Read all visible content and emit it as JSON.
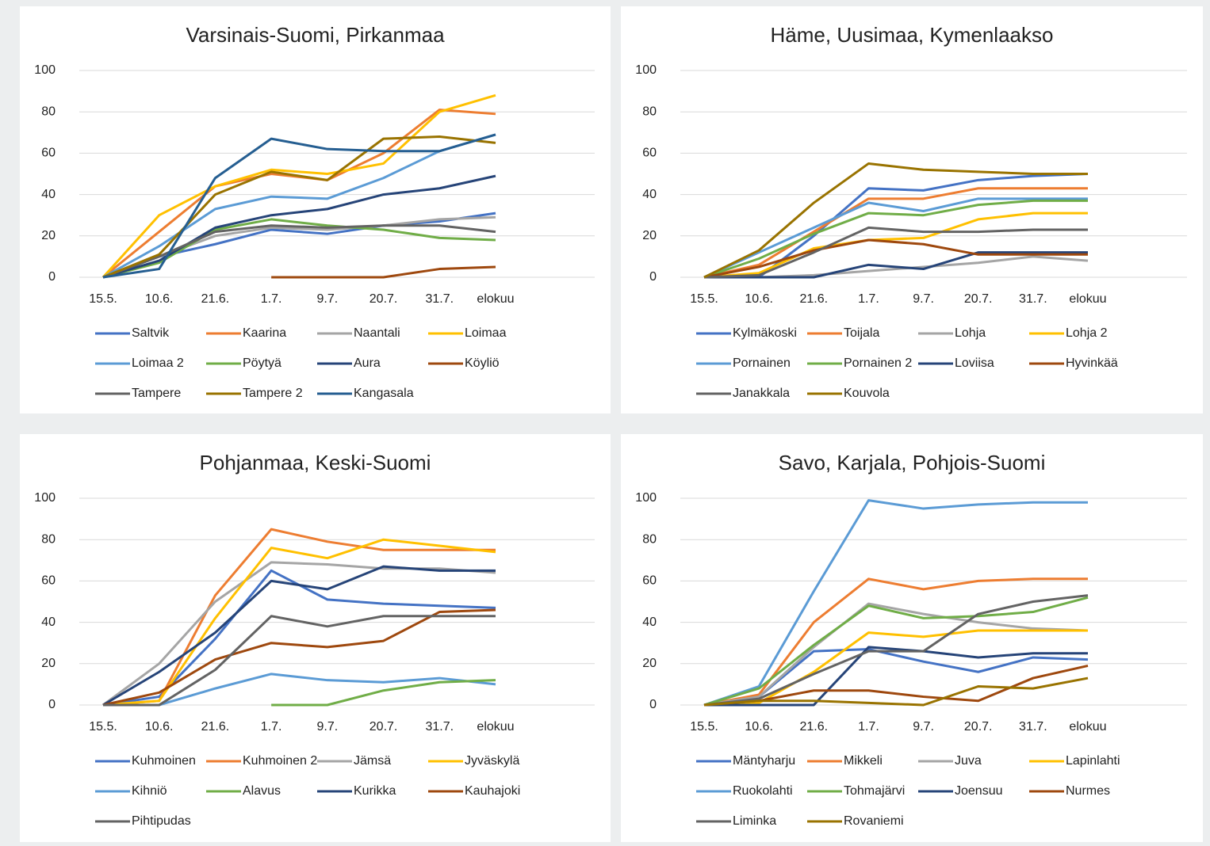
{
  "chart_data": [
    {
      "type": "line",
      "title": "Varsinais-Suomi, Pirkanmaa",
      "categories": [
        "15.5.",
        "10.6.",
        "21.6.",
        "1.7.",
        "9.7.",
        "20.7.",
        "31.7.",
        "elokuu"
      ],
      "ylim": [
        0,
        100
      ],
      "yticks": [
        0,
        20,
        40,
        60,
        80,
        100
      ],
      "grid": true,
      "legend": "bottom",
      "series": [
        {
          "name": "Saltvik",
          "color": "#4472c4",
          "values": [
            0,
            10,
            16,
            23,
            21,
            25,
            27,
            31
          ]
        },
        {
          "name": "Kaarina",
          "color": "#ed7d31",
          "values": [
            0,
            22,
            44,
            50,
            47,
            60,
            81,
            79
          ]
        },
        {
          "name": "Naantali",
          "color": "#a5a5a5",
          "values": [
            0,
            10,
            20,
            24,
            23,
            25,
            28,
            29
          ]
        },
        {
          "name": "Loimaa",
          "color": "#ffc000",
          "values": [
            0,
            30,
            44,
            52,
            50,
            55,
            80,
            88
          ]
        },
        {
          "name": "Loimaa 2",
          "color": "#5b9bd5",
          "values": [
            0,
            15,
            33,
            39,
            38,
            48,
            61,
            69
          ]
        },
        {
          "name": "Pöytyä",
          "color": "#70ad47",
          "values": [
            0,
            7,
            23,
            28,
            25,
            23,
            19,
            18
          ]
        },
        {
          "name": "Aura",
          "color": "#264478",
          "values": [
            0,
            8,
            24,
            30,
            33,
            40,
            43,
            49
          ]
        },
        {
          "name": "Köyliö",
          "color": "#9e480e",
          "values": [
            null,
            null,
            null,
            0,
            0,
            0,
            4,
            5
          ]
        },
        {
          "name": "Tampere",
          "color": "#636363",
          "values": [
            0,
            10,
            22,
            25,
            24,
            25,
            25,
            22
          ]
        },
        {
          "name": "Tampere 2",
          "color": "#997300",
          "values": [
            0,
            11,
            40,
            51,
            47,
            67,
            68,
            65
          ]
        },
        {
          "name": "Kangasala",
          "color": "#255e91",
          "values": [
            0,
            4,
            48,
            67,
            62,
            61,
            61,
            69
          ]
        }
      ]
    },
    {
      "type": "line",
      "title": "Häme, Uusimaa, Kymenlaakso",
      "categories": [
        "15.5.",
        "10.6.",
        "21.6.",
        "1.7.",
        "9.7.",
        "20.7.",
        "31.7.",
        "elokuu"
      ],
      "ylim": [
        0,
        100
      ],
      "yticks": [
        0,
        20,
        40,
        60,
        80,
        100
      ],
      "grid": true,
      "legend": "bottom",
      "series": [
        {
          "name": "Kylmäkoski",
          "color": "#4472c4",
          "values": [
            0,
            0,
            20,
            43,
            42,
            47,
            49,
            50
          ]
        },
        {
          "name": "Toijala",
          "color": "#ed7d31",
          "values": [
            0,
            6,
            22,
            38,
            38,
            43,
            43,
            43
          ]
        },
        {
          "name": "Lohja",
          "color": "#a5a5a5",
          "values": [
            0,
            0,
            1,
            3,
            5,
            7,
            10,
            8
          ]
        },
        {
          "name": "Lohja 2",
          "color": "#ffc000",
          "values": [
            0,
            2,
            14,
            18,
            19,
            28,
            31,
            31
          ]
        },
        {
          "name": "Pornainen",
          "color": "#5b9bd5",
          "values": [
            0,
            12,
            24,
            36,
            32,
            38,
            38,
            38
          ]
        },
        {
          "name": "Pornainen 2",
          "color": "#70ad47",
          "values": [
            0,
            9,
            21,
            31,
            30,
            35,
            37,
            37
          ]
        },
        {
          "name": "Loviisa",
          "color": "#264478",
          "values": [
            0,
            0,
            0,
            6,
            4,
            12,
            12,
            12
          ]
        },
        {
          "name": "Hyvinkää",
          "color": "#9e480e",
          "values": [
            0,
            5,
            13,
            18,
            16,
            11,
            11,
            11
          ]
        },
        {
          "name": "Janakkala",
          "color": "#636363",
          "values": [
            0,
            1,
            12,
            24,
            22,
            22,
            23,
            23
          ]
        },
        {
          "name": "Kouvola",
          "color": "#997300",
          "values": [
            0,
            13,
            36,
            55,
            52,
            51,
            50,
            50
          ]
        }
      ]
    },
    {
      "type": "line",
      "title": "Pohjanmaa, Keski-Suomi",
      "categories": [
        "15.5.",
        "10.6.",
        "21.6.",
        "1.7.",
        "9.7.",
        "20.7.",
        "31.7.",
        "elokuu"
      ],
      "ylim": [
        0,
        100
      ],
      "yticks": [
        0,
        20,
        40,
        60,
        80,
        100
      ],
      "grid": true,
      "legend": "bottom",
      "series": [
        {
          "name": "Kuhmoinen",
          "color": "#4472c4",
          "values": [
            0,
            4,
            32,
            65,
            51,
            49,
            48,
            47
          ]
        },
        {
          "name": "Kuhmoinen 2",
          "color": "#ed7d31",
          "values": [
            0,
            2,
            53,
            85,
            79,
            75,
            75,
            75
          ]
        },
        {
          "name": "Jämsä",
          "color": "#a5a5a5",
          "values": [
            0,
            20,
            50,
            69,
            68,
            66,
            66,
            64
          ]
        },
        {
          "name": "Jyväskylä",
          "color": "#ffc000",
          "values": [
            0,
            2,
            42,
            76,
            71,
            80,
            77,
            74
          ]
        },
        {
          "name": "Kihniö",
          "color": "#5b9bd5",
          "values": [
            null,
            0,
            8,
            15,
            12,
            11,
            13,
            10
          ]
        },
        {
          "name": "Alavus",
          "color": "#70ad47",
          "values": [
            null,
            null,
            null,
            0,
            0,
            7,
            11,
            12
          ]
        },
        {
          "name": "Kurikka",
          "color": "#264478",
          "values": [
            0,
            16,
            35,
            60,
            56,
            67,
            65,
            65
          ]
        },
        {
          "name": "Kauhajoki",
          "color": "#9e480e",
          "values": [
            0,
            6,
            22,
            30,
            28,
            31,
            45,
            46
          ]
        },
        {
          "name": "Pihtipudas",
          "color": "#636363",
          "values": [
            0,
            0,
            17,
            43,
            38,
            43,
            43,
            43
          ]
        }
      ]
    },
    {
      "type": "line",
      "title": "Savo, Karjala, Pohjois-Suomi",
      "categories": [
        "15.5.",
        "10.6.",
        "21.6.",
        "1.7.",
        "9.7.",
        "20.7.",
        "31.7.",
        "elokuu"
      ],
      "ylim": [
        0,
        100
      ],
      "yticks": [
        0,
        20,
        40,
        60,
        80,
        100
      ],
      "grid": true,
      "legend": "bottom",
      "series": [
        {
          "name": "Mäntyharju",
          "color": "#4472c4",
          "values": [
            0,
            4,
            26,
            27,
            21,
            16,
            23,
            22
          ]
        },
        {
          "name": "Mikkeli",
          "color": "#ed7d31",
          "values": [
            0,
            5,
            40,
            61,
            56,
            60,
            61,
            61
          ]
        },
        {
          "name": "Juva",
          "color": "#a5a5a5",
          "values": [
            0,
            4,
            28,
            49,
            44,
            40,
            37,
            36
          ]
        },
        {
          "name": "Lapinlahti",
          "color": "#ffc000",
          "values": [
            0,
            1,
            16,
            35,
            33,
            36,
            36,
            36
          ]
        },
        {
          "name": "Ruokolahti",
          "color": "#5b9bd5",
          "values": [
            0,
            9,
            55,
            99,
            95,
            97,
            98,
            98
          ]
        },
        {
          "name": "Tohmajärvi",
          "color": "#70ad47",
          "values": [
            0,
            8,
            29,
            48,
            42,
            43,
            45,
            52
          ]
        },
        {
          "name": "Joensuu",
          "color": "#264478",
          "values": [
            0,
            0,
            0,
            28,
            26,
            23,
            25,
            25
          ]
        },
        {
          "name": "Nurmes",
          "color": "#9e480e",
          "values": [
            0,
            2,
            7,
            7,
            4,
            2,
            13,
            19
          ]
        },
        {
          "name": "Liminka",
          "color": "#636363",
          "values": [
            0,
            3,
            15,
            26,
            26,
            44,
            50,
            53
          ]
        },
        {
          "name": "Rovaniemi",
          "color": "#997300",
          "values": [
            0,
            2,
            2,
            1,
            0,
            9,
            8,
            13
          ]
        }
      ]
    }
  ]
}
